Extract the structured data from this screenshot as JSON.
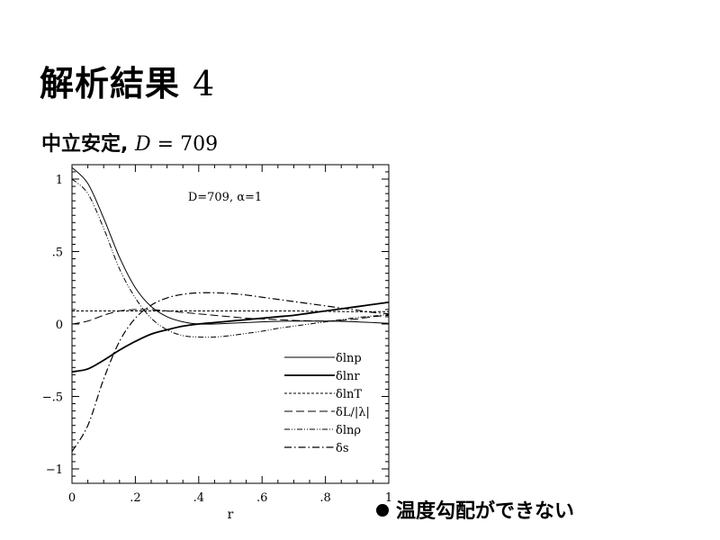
{
  "slide": {
    "title": "解析結果",
    "title_number": "4",
    "subtitle_prefix": "中立安定,",
    "subtitle_var": "D",
    "subtitle_eq": "= 709",
    "bullet_text": "温度勾配ができない"
  },
  "chart_data": {
    "type": "line",
    "annotation": "D=709,  α=1",
    "xlabel": "r",
    "ylabel": "",
    "xlim": [
      0,
      1
    ],
    "ylim": [
      -1.1,
      1.1
    ],
    "x_ticks": [
      {
        "v": 0,
        "label": "0"
      },
      {
        "v": 0.2,
        "label": ".2"
      },
      {
        "v": 0.4,
        "label": ".4"
      },
      {
        "v": 0.6,
        "label": ".6"
      },
      {
        "v": 0.8,
        "label": ".8"
      },
      {
        "v": 1,
        "label": "1"
      }
    ],
    "y_ticks": [
      {
        "v": 1,
        "label": "1"
      },
      {
        "v": 0.5,
        "label": ".5"
      },
      {
        "v": 0,
        "label": "0"
      },
      {
        "v": -0.5,
        "label": "−.5"
      },
      {
        "v": -1,
        "label": "−1"
      }
    ],
    "legend_position": "lower-right",
    "x": [
      0,
      0.05,
      0.1,
      0.15,
      0.2,
      0.25,
      0.3,
      0.35,
      0.4,
      0.45,
      0.5,
      0.55,
      0.6,
      0.65,
      0.7,
      0.75,
      0.8,
      0.85,
      0.9,
      0.95,
      1.0
    ],
    "series": [
      {
        "name": "δlnp",
        "style": "solid-thin",
        "values": [
          1.08,
          0.97,
          0.73,
          0.46,
          0.25,
          0.12,
          0.05,
          0.015,
          0.0,
          0.0,
          0.005,
          0.01,
          0.015,
          0.018,
          0.02,
          0.02,
          0.02,
          0.018,
          0.015,
          0.01,
          0.005
        ]
      },
      {
        "name": "δlnr",
        "style": "solid-thick",
        "values": [
          -0.33,
          -0.31,
          -0.25,
          -0.18,
          -0.12,
          -0.07,
          -0.04,
          -0.015,
          0.0,
          0.01,
          0.02,
          0.03,
          0.04,
          0.05,
          0.06,
          0.075,
          0.09,
          0.105,
          0.12,
          0.135,
          0.15
        ]
      },
      {
        "name": "δlnT",
        "style": "dashed-short",
        "values": [
          0.09,
          0.09,
          0.09,
          0.09,
          0.09,
          0.09,
          0.09,
          0.09,
          0.09,
          0.09,
          0.09,
          0.09,
          0.09,
          0.09,
          0.09,
          0.088,
          0.087,
          0.086,
          0.085,
          0.085,
          0.085
        ]
      },
      {
        "name": "δL/|λ|",
        "style": "dashed-long",
        "values": [
          0.0,
          0.02,
          0.06,
          0.09,
          0.1,
          0.1,
          0.09,
          0.08,
          0.07,
          0.06,
          0.05,
          0.04,
          0.035,
          0.03,
          0.025,
          0.022,
          0.02,
          0.025,
          0.035,
          0.05,
          0.06
        ]
      },
      {
        "name": "δlnρ",
        "style": "dash-dot-dot",
        "values": [
          1.0,
          0.9,
          0.66,
          0.38,
          0.18,
          0.04,
          -0.04,
          -0.08,
          -0.09,
          -0.09,
          -0.08,
          -0.065,
          -0.05,
          -0.03,
          -0.015,
          0.0,
          0.015,
          0.03,
          0.045,
          0.055,
          0.065
        ]
      },
      {
        "name": "δs",
        "style": "dash-dot",
        "values": [
          -0.88,
          -0.7,
          -0.38,
          -0.12,
          0.04,
          0.13,
          0.18,
          0.205,
          0.215,
          0.215,
          0.21,
          0.2,
          0.185,
          0.17,
          0.155,
          0.14,
          0.125,
          0.11,
          0.095,
          0.08,
          0.07
        ]
      }
    ]
  }
}
